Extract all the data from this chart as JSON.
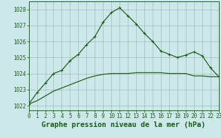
{
  "bg_color": "#cce8e8",
  "grid_color": "#99bbbb",
  "line_color": "#1a5c1a",
  "xlabel": "Graphe pression niveau de la mer (hPa)",
  "ylim": [
    1021.7,
    1028.5
  ],
  "xlim": [
    0,
    23
  ],
  "yticks": [
    1022,
    1023,
    1024,
    1025,
    1026,
    1027,
    1028
  ],
  "xticks": [
    0,
    1,
    2,
    3,
    4,
    5,
    6,
    7,
    8,
    9,
    10,
    11,
    12,
    13,
    14,
    15,
    16,
    17,
    18,
    19,
    20,
    21,
    22,
    23
  ],
  "line1_x": [
    0,
    1,
    2,
    3,
    4,
    5,
    6,
    7,
    8,
    9,
    10,
    11,
    12,
    13,
    14,
    15,
    16,
    17,
    18,
    19,
    20,
    21,
    22,
    23
  ],
  "line1_y": [
    1022.1,
    1022.8,
    1023.4,
    1024.0,
    1024.2,
    1024.8,
    1025.2,
    1025.8,
    1026.3,
    1027.2,
    1027.8,
    1028.1,
    1027.6,
    1027.1,
    1026.5,
    1026.0,
    1025.4,
    1025.2,
    1025.0,
    1025.15,
    1025.35,
    1025.1,
    1024.35,
    1023.8
  ],
  "line2_x": [
    0,
    1,
    2,
    3,
    4,
    5,
    6,
    7,
    8,
    9,
    10,
    11,
    12,
    13,
    14,
    15,
    16,
    17,
    18,
    19,
    20,
    21,
    22,
    23
  ],
  "line2_y": [
    1022.1,
    1022.3,
    1022.6,
    1022.9,
    1023.1,
    1023.3,
    1023.5,
    1023.7,
    1023.85,
    1023.95,
    1024.0,
    1024.0,
    1024.0,
    1024.05,
    1024.05,
    1024.05,
    1024.05,
    1024.0,
    1024.0,
    1024.0,
    1023.85,
    1023.85,
    1023.8,
    1023.8
  ],
  "tick_fontsize": 5.5,
  "xlabel_fontsize": 7.5
}
